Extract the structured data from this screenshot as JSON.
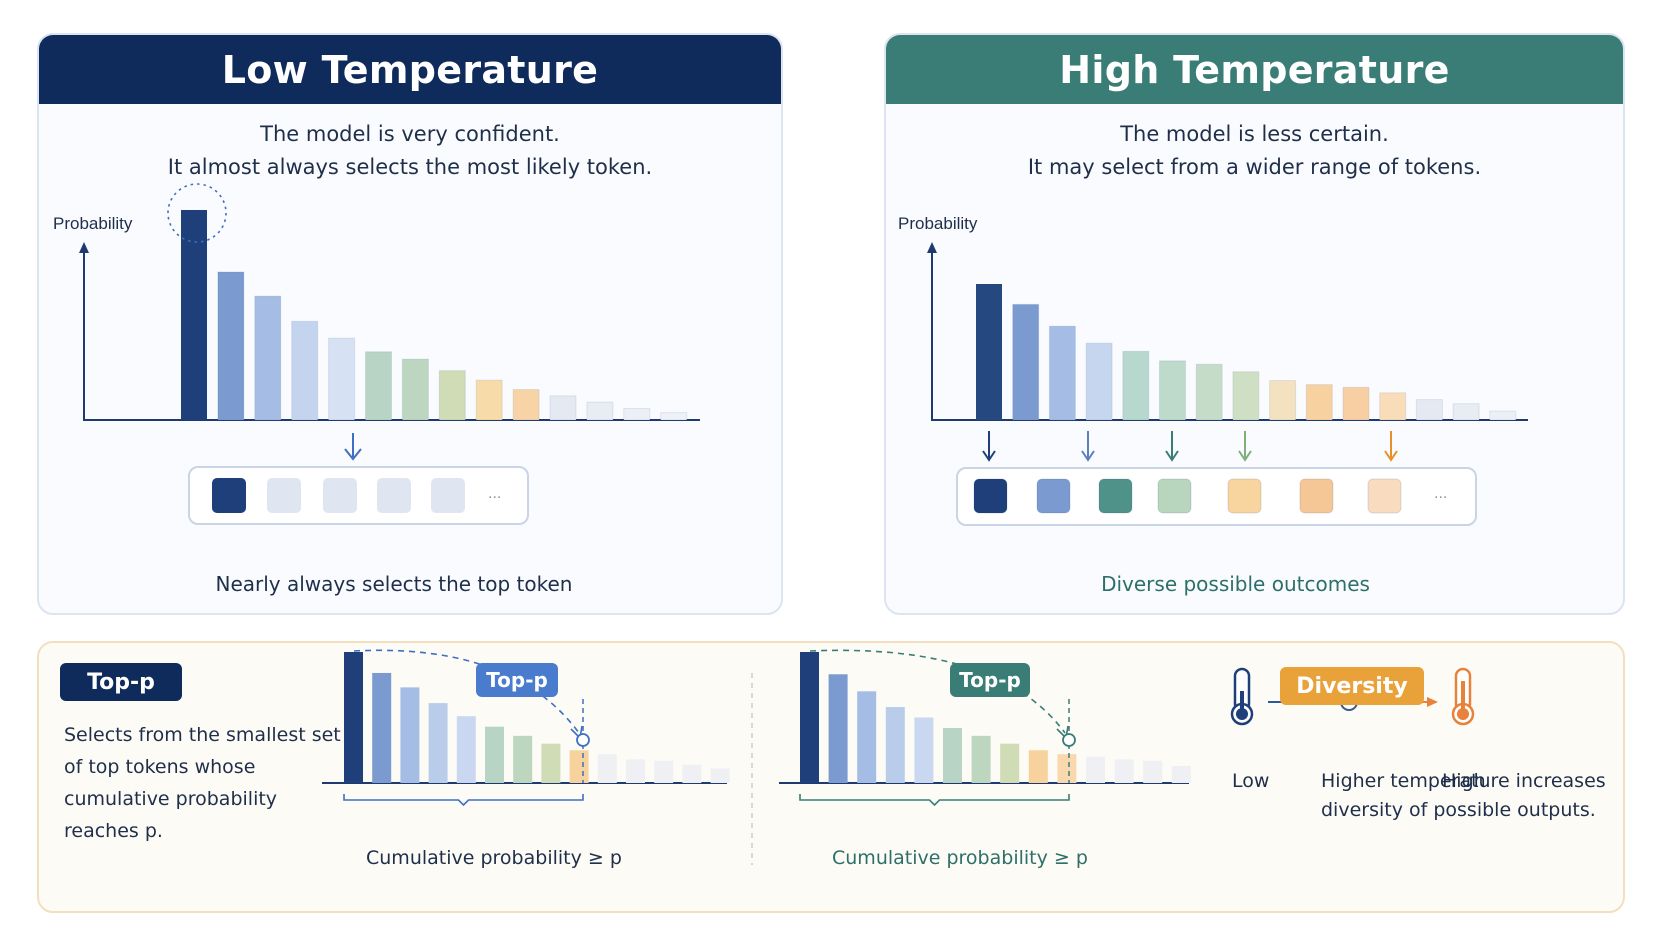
{
  "low_panel": {
    "title": "Low Temperature",
    "desc_line1": "The model is very confident.",
    "desc_line2": "It almost always selects the most likely token.",
    "axis_label": "Probability",
    "outcome_label": "Nearly always selects the top token",
    "ellipsis": "...",
    "bars": [
      {
        "value": 1.0,
        "color": "#1e3f7a"
      },
      {
        "value": 0.705,
        "color": "#7b9bd0"
      },
      {
        "value": 0.59,
        "color": "#a5bde4"
      },
      {
        "value": 0.47,
        "color": "#c4d4ee"
      },
      {
        "value": 0.39,
        "color": "#d6e1f3"
      },
      {
        "value": 0.325,
        "color": "#b7d4c4"
      },
      {
        "value": 0.29,
        "color": "#bcd6bf"
      },
      {
        "value": 0.235,
        "color": "#cfdcb6"
      },
      {
        "value": 0.19,
        "color": "#f7dba8"
      },
      {
        "value": 0.145,
        "color": "#f8d3a6"
      },
      {
        "value": 0.115,
        "color": "#e5e9f1"
      },
      {
        "value": 0.085,
        "color": "#e8ecf3"
      },
      {
        "value": 0.055,
        "color": "#eceff5"
      },
      {
        "value": 0.035,
        "color": "#eef1f6"
      }
    ],
    "tokens": [
      "#1e3f7a",
      "#dfe6f1",
      "#dfe6f1",
      "#dfe6f1",
      "#dfe6f1"
    ]
  },
  "high_panel": {
    "title": "High Temperature",
    "desc_line1": "The model is less certain.",
    "desc_line2": "It may select from a wider range of tokens.",
    "axis_label": "Probability",
    "outcome_label": "Diverse possible outcomes",
    "ellipsis": "...",
    "bars": [
      {
        "value": 1.0,
        "color": "#24487f"
      },
      {
        "value": 0.85,
        "color": "#7b9bd0"
      },
      {
        "value": 0.69,
        "color": "#a5bde4"
      },
      {
        "value": 0.565,
        "color": "#c6d6ee"
      },
      {
        "value": 0.505,
        "color": "#b7d8cd"
      },
      {
        "value": 0.435,
        "color": "#bddacb"
      },
      {
        "value": 0.41,
        "color": "#c5ddc8"
      },
      {
        "value": 0.355,
        "color": "#cfdfc3"
      },
      {
        "value": 0.29,
        "color": "#f3e1c0"
      },
      {
        "value": 0.26,
        "color": "#f7d2a0"
      },
      {
        "value": 0.24,
        "color": "#f8cfa3"
      },
      {
        "value": 0.2,
        "color": "#f9dcb8"
      },
      {
        "value": 0.15,
        "color": "#e5e9f1"
      },
      {
        "value": 0.12,
        "color": "#e8ecf3"
      },
      {
        "value": 0.065,
        "color": "#eceff5"
      }
    ],
    "tokens": [
      "#1e3f7a",
      "#7b9bd0",
      "#4f928a",
      "#b7d6bd",
      "#f8d49e",
      "#f6c796",
      "#f9dcc0"
    ],
    "arrow_colors": [
      "#1e3f7a",
      "#5a7fc0",
      "#3a7d77",
      "#7fb07a",
      "#e8902a"
    ]
  },
  "bottom": {
    "topp_badge": "Top-p",
    "topp_desc": "Selects from the smallest set of top tokens whose cumulative probability reaches p.",
    "chart1": {
      "badge": "Top-p",
      "caption": "Cumulative probability ≥ p",
      "bars": [
        1.0,
        0.84,
        0.73,
        0.61,
        0.51,
        0.43,
        0.36,
        0.3,
        0.25,
        0.22,
        0.18,
        0.17,
        0.14,
        0.11
      ],
      "colors": [
        "#1e3f7a",
        "#7b9bd0",
        "#a5bde4",
        "#b9cdeb",
        "#c9d8f0",
        "#b7d4c4",
        "#bcd6bf",
        "#cfdcb6",
        "#f7d29c",
        "#eef0f4",
        "#eef0f4",
        "#eef0f4",
        "#eef0f4",
        "#eef0f4"
      ],
      "selected_count": 9
    },
    "chart2": {
      "badge": "Top-p",
      "caption": "Cumulative probability ≥ p",
      "bars": [
        1.0,
        0.83,
        0.7,
        0.58,
        0.5,
        0.42,
        0.36,
        0.3,
        0.25,
        0.22,
        0.2,
        0.18,
        0.17,
        0.13
      ],
      "colors": [
        "#1e3f7a",
        "#7b9bd0",
        "#a5bde4",
        "#b9cdeb",
        "#c9d8f0",
        "#b7d4c4",
        "#bcd6bf",
        "#cfdcb6",
        "#f7d29c",
        "#f9d8ad",
        "#eef0f4",
        "#eef0f4",
        "#eef0f4",
        "#eef0f4"
      ],
      "selected_count": 10
    },
    "diversity": {
      "badge": "Diversity",
      "low": "Low",
      "high": "High",
      "desc_line1": "Higher temperature increases",
      "desc_line2": "diversity of possible outputs."
    },
    "colors": {
      "navy": "#0f2b5b",
      "teal": "#3a7d77",
      "blue": "#4a7ccd",
      "orange": "#e9a23a"
    }
  }
}
